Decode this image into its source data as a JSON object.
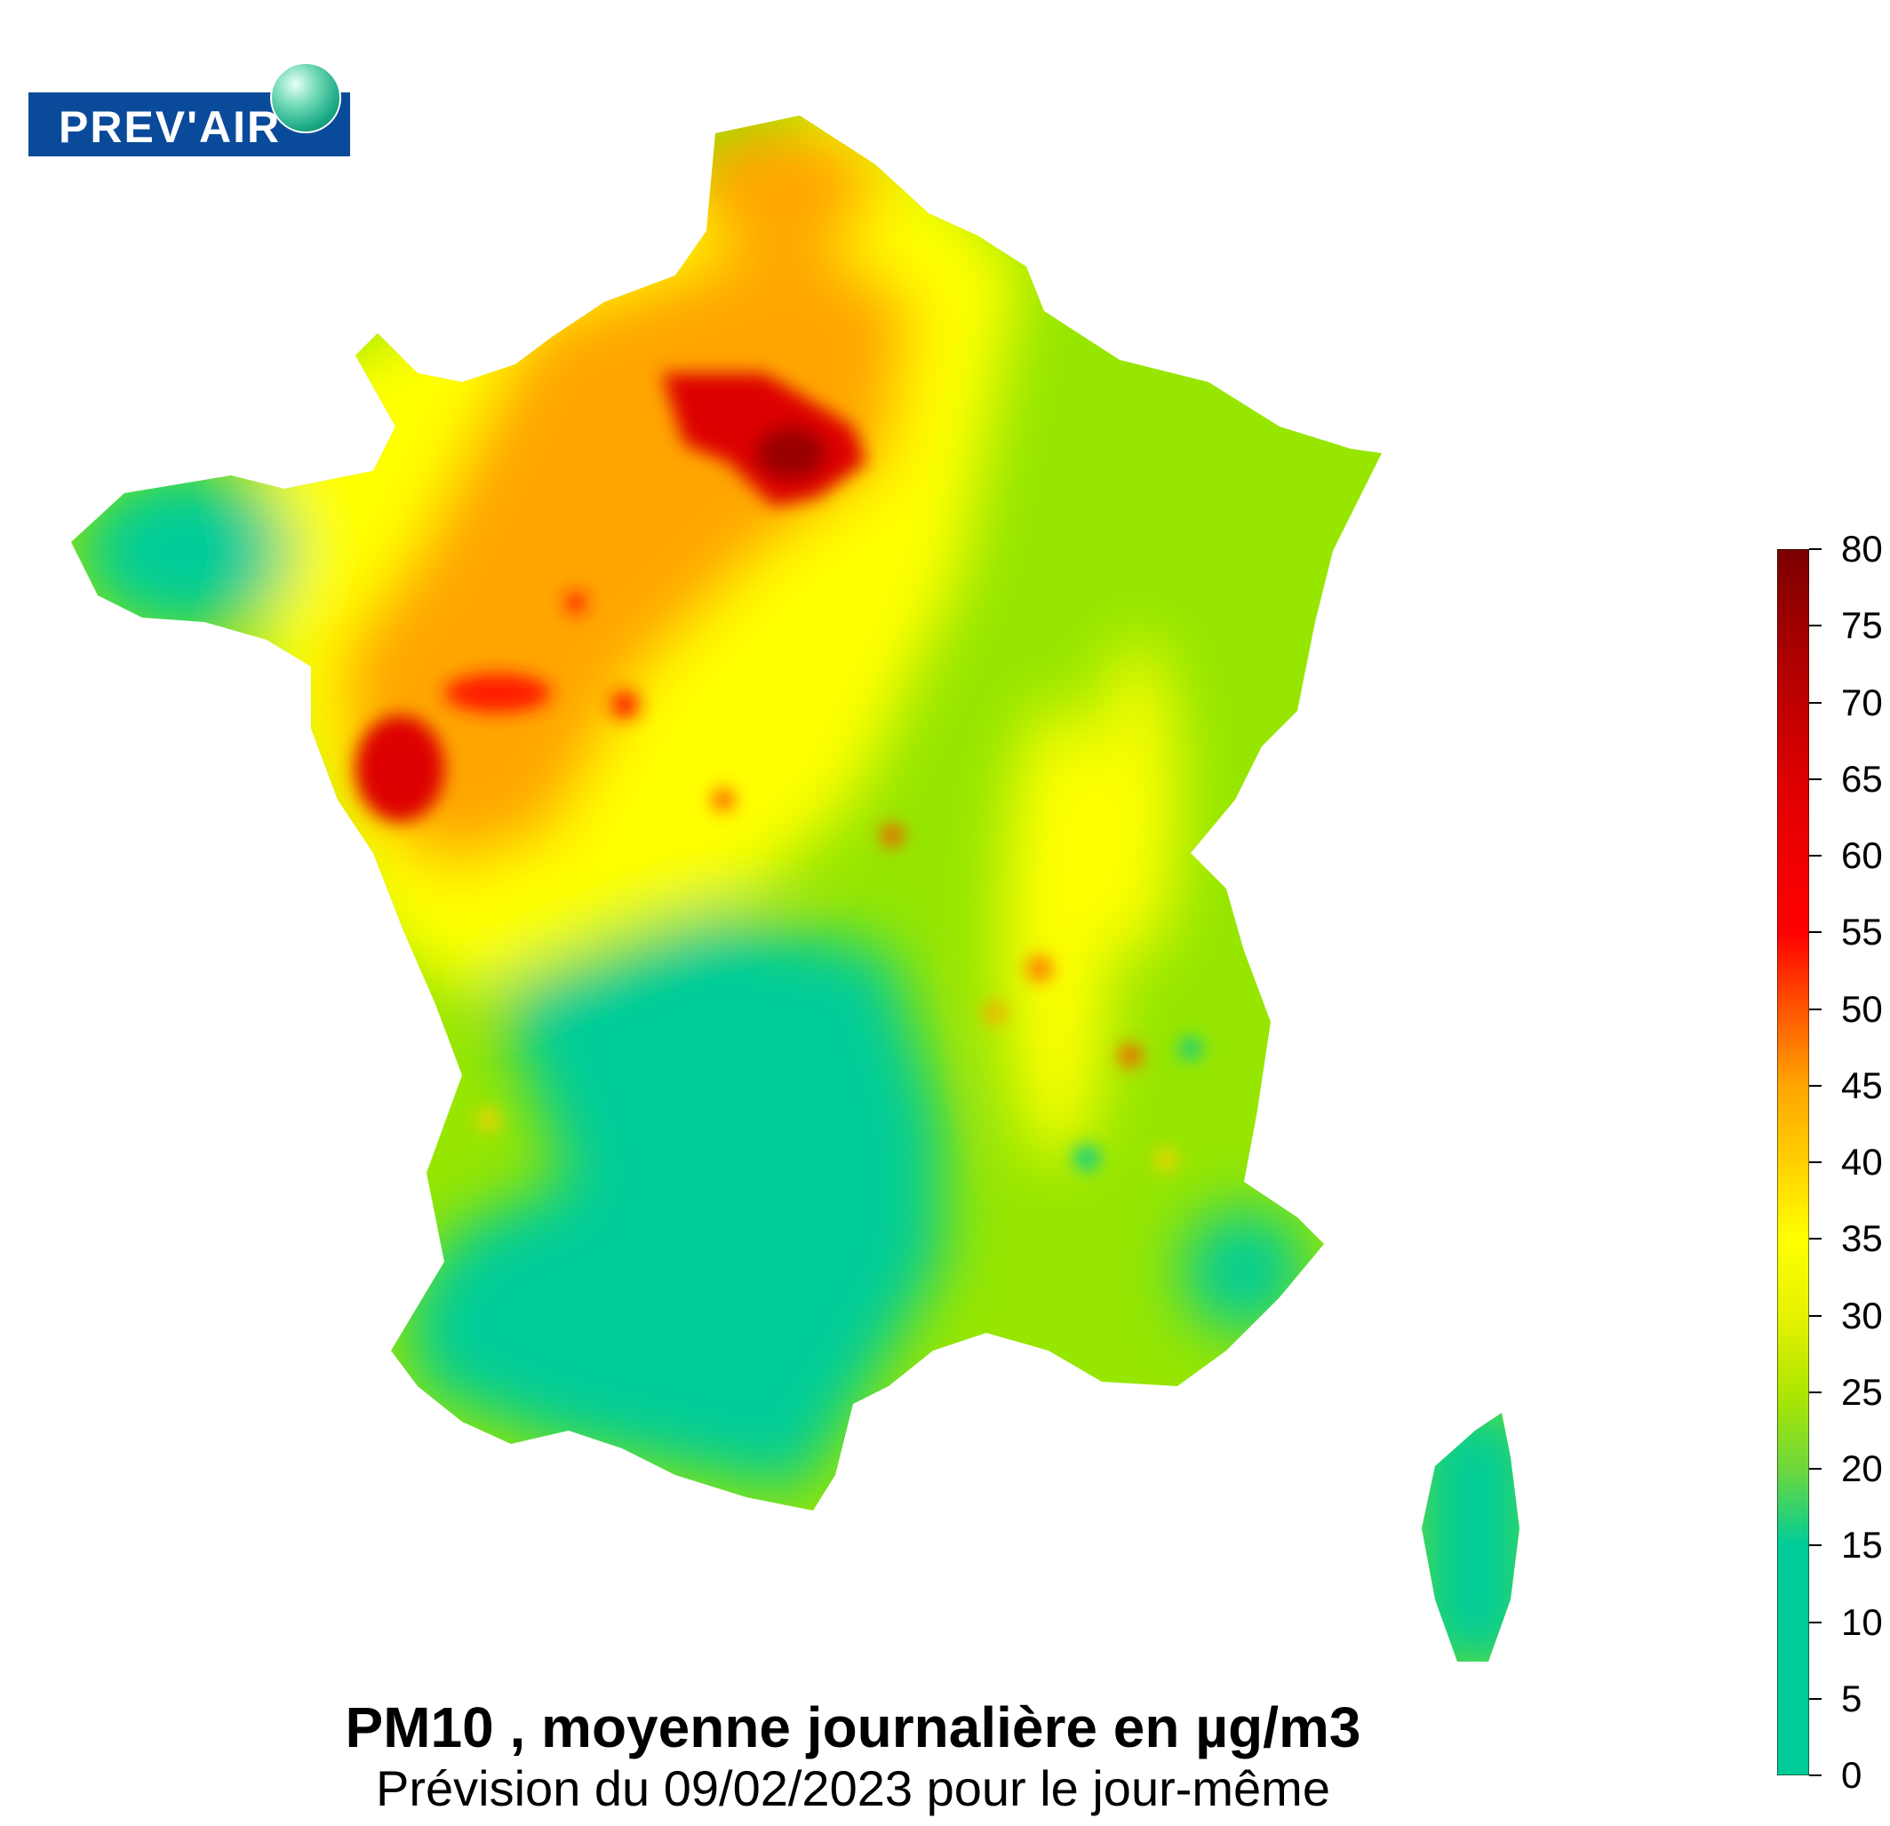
{
  "logo": {
    "text": "PREV'AIR"
  },
  "title": "PM10 , moyenne journalière en µg/m3",
  "subtitle": "Prévision du 09/02/2023 pour le jour-même",
  "colorbar": {
    "min": 0,
    "max": 80,
    "ticks": [
      "0",
      "5",
      "10",
      "15",
      "20",
      "25",
      "30",
      "35",
      "40",
      "45",
      "50",
      "55",
      "60",
      "65",
      "70",
      "75",
      "80"
    ],
    "colors": {
      "low": "#00cc99",
      "mid_low": "#96e600",
      "mid": "#ffff00",
      "mid_high": "#ffa500",
      "high": "#ff0000",
      "top": "#800000"
    }
  }
}
